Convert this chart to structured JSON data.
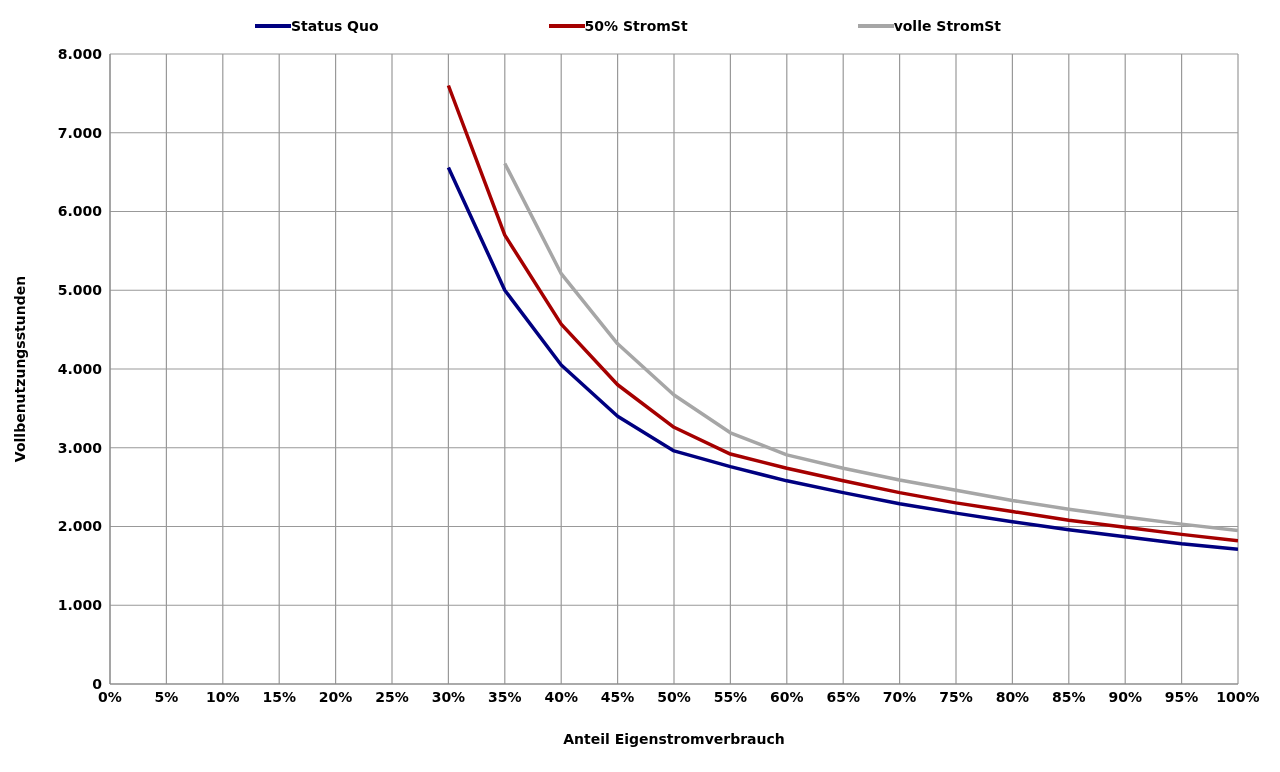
{
  "chart_data": {
    "type": "line",
    "xlabel": "Anteil Eigenstromverbrauch",
    "ylabel": "Vollbenutzungsstunden",
    "xlim": [
      0,
      100
    ],
    "xticks": [
      {
        "value": 0,
        "label": "0%"
      },
      {
        "value": 5,
        "label": "5%"
      },
      {
        "value": 10,
        "label": "10%"
      },
      {
        "value": 15,
        "label": "15%"
      },
      {
        "value": 20,
        "label": "20%"
      },
      {
        "value": 25,
        "label": "25%"
      },
      {
        "value": 30,
        "label": "30%"
      },
      {
        "value": 35,
        "label": "35%"
      },
      {
        "value": 40,
        "label": "40%"
      },
      {
        "value": 45,
        "label": "45%"
      },
      {
        "value": 50,
        "label": "50%"
      },
      {
        "value": 55,
        "label": "55%"
      },
      {
        "value": 60,
        "label": "60%"
      },
      {
        "value": 65,
        "label": "65%"
      },
      {
        "value": 70,
        "label": "70%"
      },
      {
        "value": 75,
        "label": "75%"
      },
      {
        "value": 80,
        "label": "80%"
      },
      {
        "value": 85,
        "label": "85%"
      },
      {
        "value": 90,
        "label": "90%"
      },
      {
        "value": 95,
        "label": "95%"
      },
      {
        "value": 100,
        "label": "100%"
      }
    ],
    "ylim": [
      0,
      8000
    ],
    "yticks": [
      0,
      {
        "value": 1000,
        "label": "1.000"
      },
      {
        "value": 2000,
        "label": "2.000"
      },
      {
        "value": 3000,
        "label": "3.000"
      },
      {
        "value": 4000,
        "label": "4.000"
      },
      {
        "value": 5000,
        "label": "5.000"
      },
      {
        "value": 6000,
        "label": "6.000"
      },
      {
        "value": 7000,
        "label": "7.000"
      },
      {
        "value": 8000,
        "label": "8.000"
      }
    ],
    "grid": true,
    "legend": "top",
    "marker": "none",
    "line_style": "solid",
    "series": [
      {
        "name": "Status Quo",
        "color": "#000080",
        "x": [
          30,
          35,
          40,
          45,
          50,
          55,
          60,
          65,
          70,
          75,
          80,
          85,
          90,
          95,
          100
        ],
        "values": [
          6560,
          5000,
          4050,
          3400,
          2960,
          2760,
          2580,
          2430,
          2290,
          2170,
          2060,
          1960,
          1870,
          1780,
          1710
        ]
      },
      {
        "name": "50% StromSt",
        "color": "#a50000",
        "x": [
          30,
          35,
          40,
          45,
          50,
          55,
          60,
          65,
          70,
          75,
          80,
          85,
          90,
          95,
          100
        ],
        "values": [
          7600,
          5700,
          4570,
          3800,
          3260,
          2920,
          2740,
          2580,
          2430,
          2300,
          2190,
          2080,
          1990,
          1900,
          1820
        ]
      },
      {
        "name": "volle StromSt",
        "color": "#a6a6a6",
        "x": [
          35,
          40,
          45,
          50,
          55,
          60,
          65,
          70,
          75,
          80,
          85,
          90,
          95,
          100
        ],
        "values": [
          6610,
          5210,
          4320,
          3670,
          3190,
          2910,
          2740,
          2590,
          2460,
          2330,
          2220,
          2120,
          2030,
          1950
        ]
      }
    ]
  }
}
